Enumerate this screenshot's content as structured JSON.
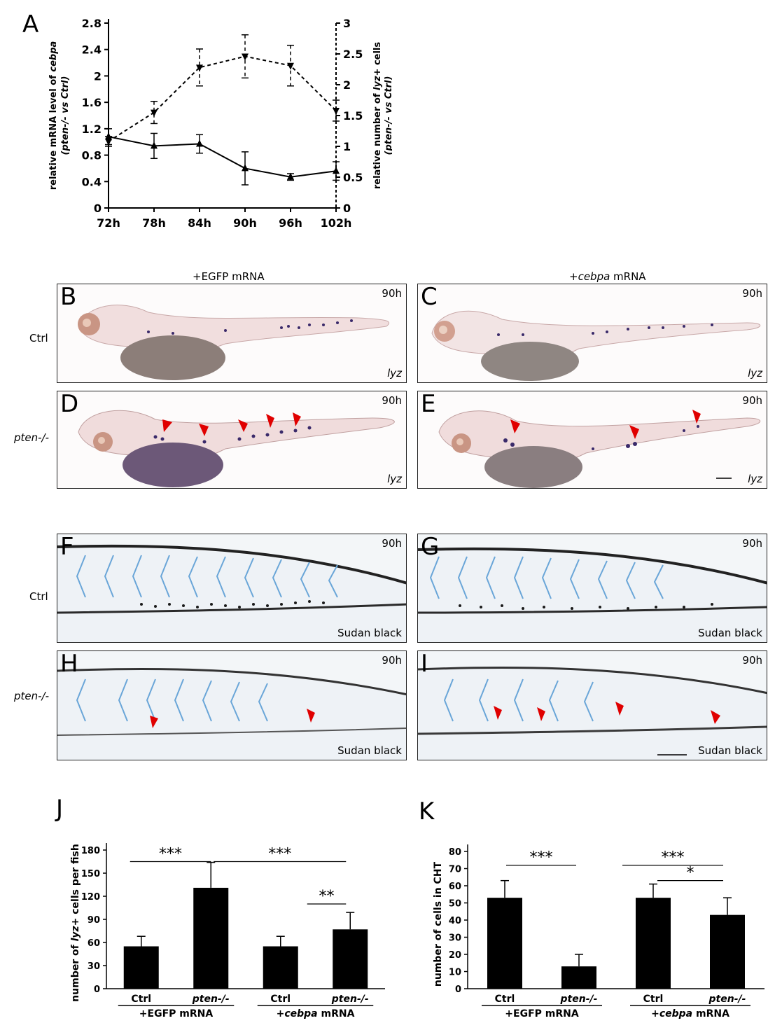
{
  "panel_letters": {
    "a": "A",
    "b": "B",
    "c": "C",
    "d": "D",
    "e": "E",
    "f": "F",
    "g": "G",
    "h": "H",
    "i": "I",
    "j": "J",
    "k": "K"
  },
  "columns": {
    "egfp": "+EGFP mRNA",
    "cebpa_italic": "+cebpa",
    "cebpa_rest": " mRNA"
  },
  "rows": {
    "ctrl": "Ctrl",
    "pten": "pten-/-"
  },
  "timepoint": "90h",
  "stain_lyz": "lyz",
  "stain_sudan": "Sudan black",
  "chart_data": [
    {
      "type": "line",
      "x": [
        "72h",
        "78h",
        "84h",
        "90h",
        "96h",
        "102h"
      ],
      "ylabel_left_line1_a": "relative mRNA level of ",
      "ylabel_left_line1_b": "cebpa",
      "ylabel_left_line2": "(pten-/- vs Ctrl)",
      "ylabel_right_line1_a": "relative number of ",
      "ylabel_right_line1_b": "lyz",
      "ylabel_right_line1_c": "+ cells",
      "ylabel_right_line2": "(pten-/- vs Ctrl)",
      "left_axis": {
        "ylim": [
          0,
          2.8
        ],
        "ticks": [
          "0",
          "0.4",
          "0.8",
          "1.2",
          "1.6",
          "2",
          "2.4",
          "2.8"
        ]
      },
      "right_axis": {
        "ylim": [
          0,
          3
        ],
        "ticks": [
          "0",
          "0.5",
          "1",
          "1.5",
          "2",
          "2.5",
          "3"
        ]
      },
      "series": [
        {
          "axis": "left",
          "style": "solid",
          "marker": "triangle-up",
          "values": [
            1.08,
            0.94,
            0.97,
            0.6,
            0.47,
            0.56
          ],
          "err": [
            0.12,
            0.19,
            0.14,
            0.25,
            0.05,
            0.14
          ]
        },
        {
          "axis": "right",
          "style": "dashed",
          "marker": "triangle-down",
          "values": [
            1.08,
            1.55,
            2.28,
            2.46,
            2.31,
            1.58
          ],
          "err": [
            0.08,
            0.18,
            0.3,
            0.35,
            0.33,
            0.17
          ]
        }
      ]
    },
    {
      "type": "bar",
      "ylabel_a": "number of ",
      "ylabel_b": "lyz",
      "ylabel_c": "+ cells per fish",
      "ylim": [
        0,
        180
      ],
      "yticks": [
        "0",
        "30",
        "60",
        "90",
        "120",
        "150",
        "180"
      ],
      "categories": [
        "Ctrl",
        "pten-/-",
        "Ctrl",
        "pten-/-"
      ],
      "group_labels": [
        "+EGFP mRNA",
        "+cebpa mRNA"
      ],
      "values": [
        55,
        131,
        55,
        77
      ],
      "err": [
        13,
        33,
        13,
        22
      ],
      "significance": [
        {
          "label": "***"
        },
        {
          "label": "***"
        },
        {
          "label": "**"
        }
      ]
    },
    {
      "type": "bar",
      "ylabel": "number of cells in CHT",
      "ylim": [
        0,
        80
      ],
      "yticks": [
        "0",
        "10",
        "20",
        "30",
        "40",
        "50",
        "60",
        "70",
        "80"
      ],
      "categories": [
        "Ctrl",
        "pten-/-",
        "Ctrl",
        "pten-/-"
      ],
      "group_labels": [
        "+EGFP mRNA",
        "+cebpa mRNA"
      ],
      "values": [
        53,
        13,
        53,
        43
      ],
      "err": [
        10,
        7,
        8,
        10
      ],
      "significance": [
        {
          "label": "***"
        },
        {
          "label": "***"
        },
        {
          "label": "*"
        }
      ]
    }
  ],
  "colors": {
    "arrow": "#e00000",
    "bar": "#000000",
    "stain": "#3a2a6a"
  }
}
